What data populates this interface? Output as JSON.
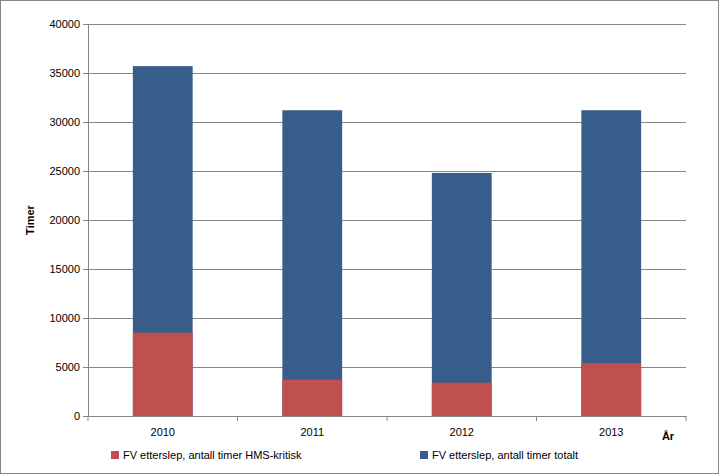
{
  "chart_data": {
    "type": "bar",
    "categories": [
      "2010",
      "2011",
      "2012",
      "2013"
    ],
    "series": [
      {
        "name": "FV etterslep, antall timer HMS-kritisk",
        "color": "#c0504d",
        "values": [
          8500,
          3700,
          3400,
          5400
        ]
      },
      {
        "name": "FV etterslep, antall timer totalt",
        "color": "#385d8a",
        "values": [
          35700,
          31200,
          24800,
          31200
        ]
      }
    ],
    "x_label": "År",
    "y_label": "Timer",
    "ylim": [
      0,
      40000
    ],
    "yticks": [
      0,
      5000,
      10000,
      15000,
      20000,
      25000,
      30000,
      35000,
      40000
    ],
    "grid": true,
    "legend": "bottom"
  }
}
